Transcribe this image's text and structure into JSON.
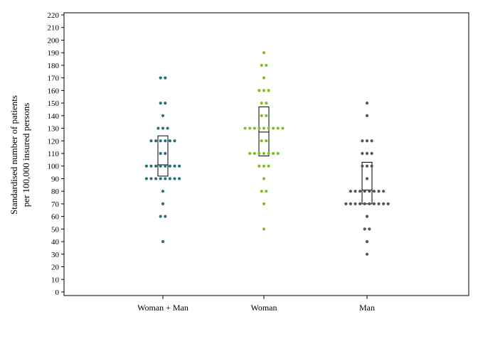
{
  "chart_data": {
    "type": "scatter",
    "subtype": "dot-strip-plot-with-box",
    "title": "",
    "ylabel_lines": [
      "Standardised number of patients",
      "per 100,000 insured persons"
    ],
    "xlabel": "",
    "ylim": [
      0,
      220
    ],
    "ytick_step": 10,
    "yticks": [
      "0",
      "10",
      "20",
      "30",
      "40",
      "50",
      "60",
      "70",
      "80",
      "90",
      "100",
      "110",
      "120",
      "130",
      "140",
      "150",
      "160",
      "170",
      "180",
      "190",
      "200",
      "210",
      "220"
    ],
    "grid": false,
    "legend": "none",
    "categories": [
      "Woman + Man",
      "Woman",
      "Man"
    ],
    "series": [
      {
        "color": "#2a6f78",
        "values": [
          170,
          170,
          150,
          150,
          140,
          130,
          130,
          130,
          120,
          120,
          120,
          120,
          120,
          120,
          110,
          110,
          100,
          100,
          100,
          100,
          100,
          100,
          100,
          100,
          90,
          90,
          90,
          90,
          90,
          90,
          90,
          90,
          80,
          70,
          60,
          60,
          40
        ],
        "box": {
          "q1": 92,
          "median": 101,
          "q3": 124
        }
      },
      {
        "color": "#7dbf1f",
        "values": [
          190,
          180,
          180,
          170,
          160,
          160,
          160,
          150,
          150,
          140,
          140,
          130,
          130,
          130,
          130,
          130,
          130,
          130,
          130,
          130,
          120,
          120,
          110,
          110,
          110,
          110,
          110,
          110,
          110,
          100,
          100,
          100,
          90,
          80,
          80,
          70,
          50
        ],
        "box": {
          "q1": 108,
          "median": 127,
          "q3": 147
        }
      },
      {
        "color": "#555555",
        "values": [
          150,
          140,
          120,
          120,
          120,
          110,
          110,
          110,
          100,
          100,
          100,
          90,
          80,
          80,
          80,
          80,
          80,
          80,
          80,
          80,
          70,
          70,
          70,
          70,
          70,
          70,
          70,
          70,
          70,
          70,
          60,
          50,
          50,
          40,
          30
        ],
        "box": {
          "q1": 70,
          "median": 81,
          "q3": 103
        }
      }
    ]
  }
}
